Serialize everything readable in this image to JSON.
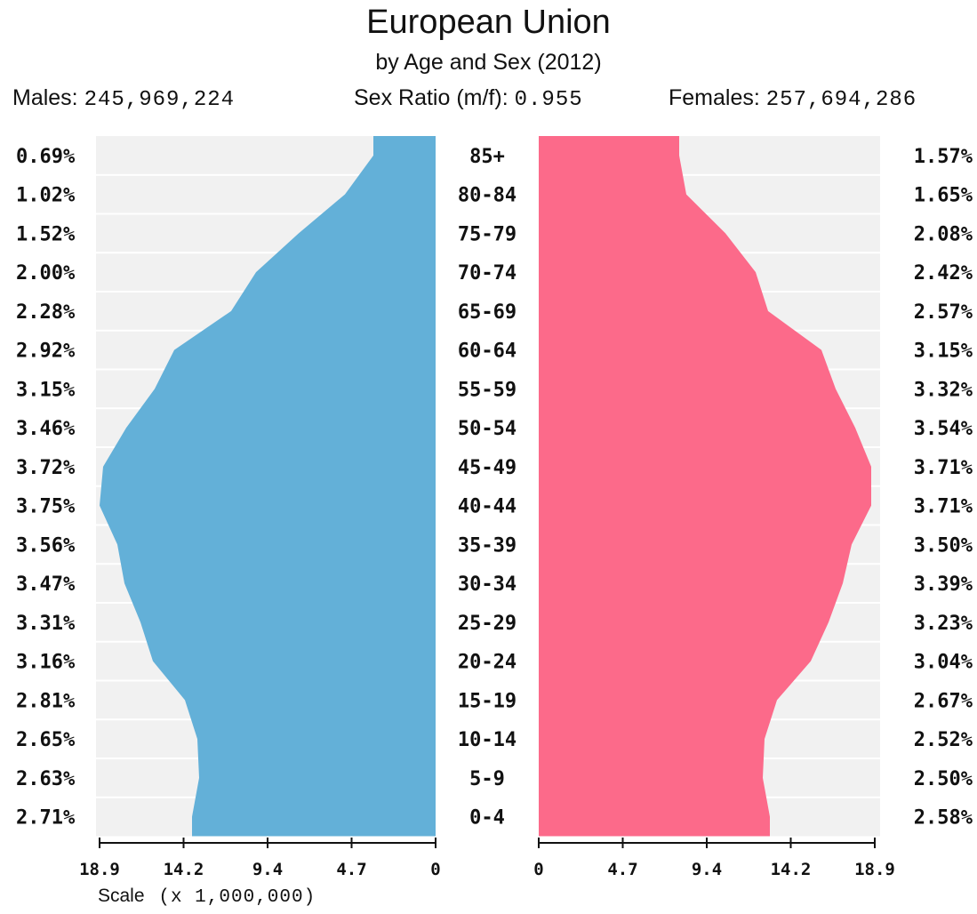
{
  "chart_data": {
    "type": "population-pyramid",
    "title": "European Union",
    "subtitle": "by Age and Sex (2012)",
    "stats": {
      "males_label": "Males:",
      "males_value": "245,969,224",
      "ratio_label": "Sex Ratio (m/f):",
      "ratio_value": "0.955",
      "females_label": "Females:",
      "females_value": "257,694,286"
    },
    "age_groups": [
      "85+",
      "80-84",
      "75-79",
      "70-74",
      "65-69",
      "60-64",
      "55-59",
      "50-54",
      "45-49",
      "40-44",
      "35-39",
      "30-34",
      "25-29",
      "20-24",
      "15-19",
      "10-14",
      "5-9",
      "0-4"
    ],
    "series": [
      {
        "name": "Males",
        "color": "#63b0d8",
        "percent_labels": [
          "0.69%",
          "1.02%",
          "1.52%",
          "2.00%",
          "2.28%",
          "2.92%",
          "3.15%",
          "3.46%",
          "3.72%",
          "3.75%",
          "3.56%",
          "3.47%",
          "3.31%",
          "3.16%",
          "2.81%",
          "2.65%",
          "2.63%",
          "2.71%"
        ],
        "values_millions": [
          3.5,
          5.1,
          7.7,
          10.1,
          11.5,
          14.7,
          15.8,
          17.4,
          18.7,
          18.9,
          17.9,
          17.5,
          16.6,
          15.9,
          14.1,
          13.4,
          13.3,
          13.7
        ]
      },
      {
        "name": "Females",
        "color": "#fc6a8a",
        "percent_labels": [
          "1.57%",
          "1.65%",
          "2.08%",
          "2.42%",
          "2.57%",
          "3.15%",
          "3.32%",
          "3.54%",
          "3.71%",
          "3.71%",
          "3.50%",
          "3.39%",
          "3.23%",
          "3.04%",
          "2.67%",
          "2.52%",
          "2.50%",
          "2.58%"
        ],
        "values_millions": [
          7.9,
          8.3,
          10.5,
          12.2,
          12.9,
          15.9,
          16.7,
          17.8,
          18.7,
          18.7,
          17.6,
          17.1,
          16.3,
          15.3,
          13.4,
          12.7,
          12.6,
          13.0
        ]
      }
    ],
    "axis": {
      "max": 18.9,
      "left_ticks": [
        "18.9",
        "14.2",
        "9.4",
        "4.7",
        "0"
      ],
      "right_ticks": [
        "0",
        "4.7",
        "9.4",
        "14.2",
        "18.9"
      ],
      "scale_label": "Scale",
      "scale_multiplier": "(x 1,000,000)"
    },
    "colors": {
      "background_band": "#f1f1f1",
      "band_separator": "#ffffff",
      "axis": "#111111"
    }
  }
}
